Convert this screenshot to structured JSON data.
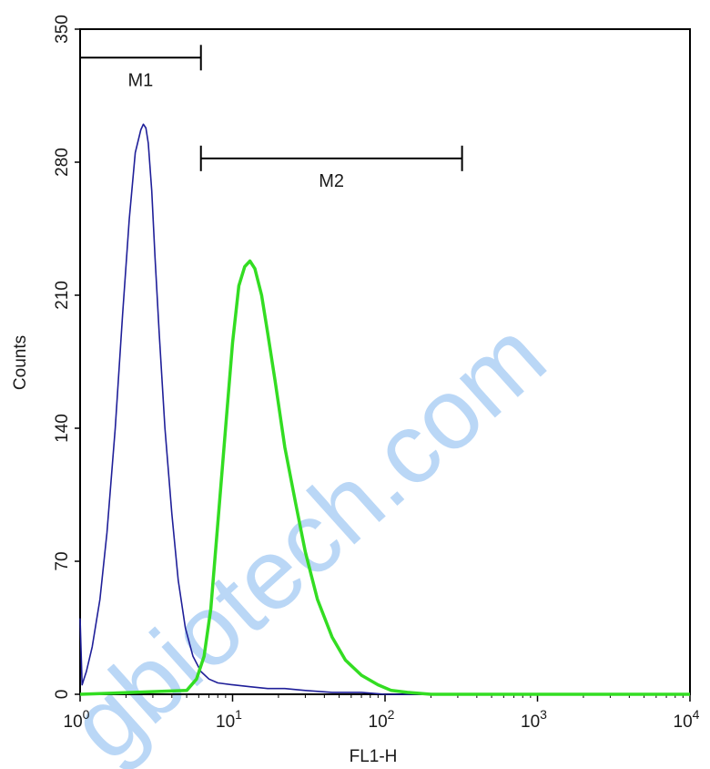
{
  "chart_data": {
    "type": "line",
    "xlabel": "FL1-H",
    "ylabel": "Counts",
    "x_scale": "log",
    "xlim": [
      1,
      10000
    ],
    "ylim": [
      0,
      350
    ],
    "x_ticks": [
      {
        "value": 1,
        "base": "10",
        "exp": "0"
      },
      {
        "value": 10,
        "base": "10",
        "exp": "1"
      },
      {
        "value": 100,
        "base": "10",
        "exp": "2"
      },
      {
        "value": 1000,
        "base": "10",
        "exp": "3"
      },
      {
        "value": 10000,
        "base": "10",
        "exp": "4"
      }
    ],
    "y_ticks": [
      0,
      70,
      140,
      210,
      280,
      350
    ],
    "grid": false,
    "series": [
      {
        "color": "#1f1f99",
        "x": [
          1.0,
          1.03,
          1.06,
          1.1,
          1.2,
          1.35,
          1.5,
          1.7,
          1.9,
          2.1,
          2.3,
          2.5,
          2.6,
          2.7,
          2.8,
          2.95,
          3.1,
          3.3,
          3.6,
          4.0,
          4.4,
          4.9,
          5.5,
          6.2,
          7.0,
          8.0,
          10,
          13,
          17,
          22,
          30,
          45,
          70,
          100,
          10000
        ],
        "y": [
          40,
          5,
          8,
          12,
          25,
          50,
          85,
          140,
          200,
          250,
          285,
          297,
          300,
          298,
          290,
          265,
          230,
          190,
          140,
          95,
          60,
          35,
          20,
          12,
          8,
          6,
          5,
          4,
          3,
          3,
          2,
          1,
          1,
          0,
          0
        ]
      },
      {
        "color": "#33dd22",
        "x": [
          1,
          5.0,
          5.8,
          6.5,
          7.2,
          8.0,
          9.0,
          10.0,
          11.0,
          12.0,
          13.0,
          14.0,
          15.5,
          17.0,
          19.0,
          22.0,
          26.0,
          30.0,
          36.0,
          45.0,
          55.0,
          70.0,
          90.0,
          110.0,
          140.0,
          200.0,
          10000
        ],
        "y": [
          0,
          2,
          8,
          20,
          45,
          90,
          140,
          185,
          215,
          225,
          228,
          224,
          210,
          190,
          165,
          130,
          100,
          75,
          50,
          30,
          18,
          10,
          5,
          2,
          1,
          0,
          0
        ]
      }
    ],
    "markers": [
      {
        "label": "M1",
        "x_start": 1,
        "x_end": 6.2,
        "y": 335
      },
      {
        "label": "M2",
        "x_start": 6.2,
        "x_end": 320,
        "y": 282
      }
    ],
    "watermark": "gbiotech.com"
  }
}
